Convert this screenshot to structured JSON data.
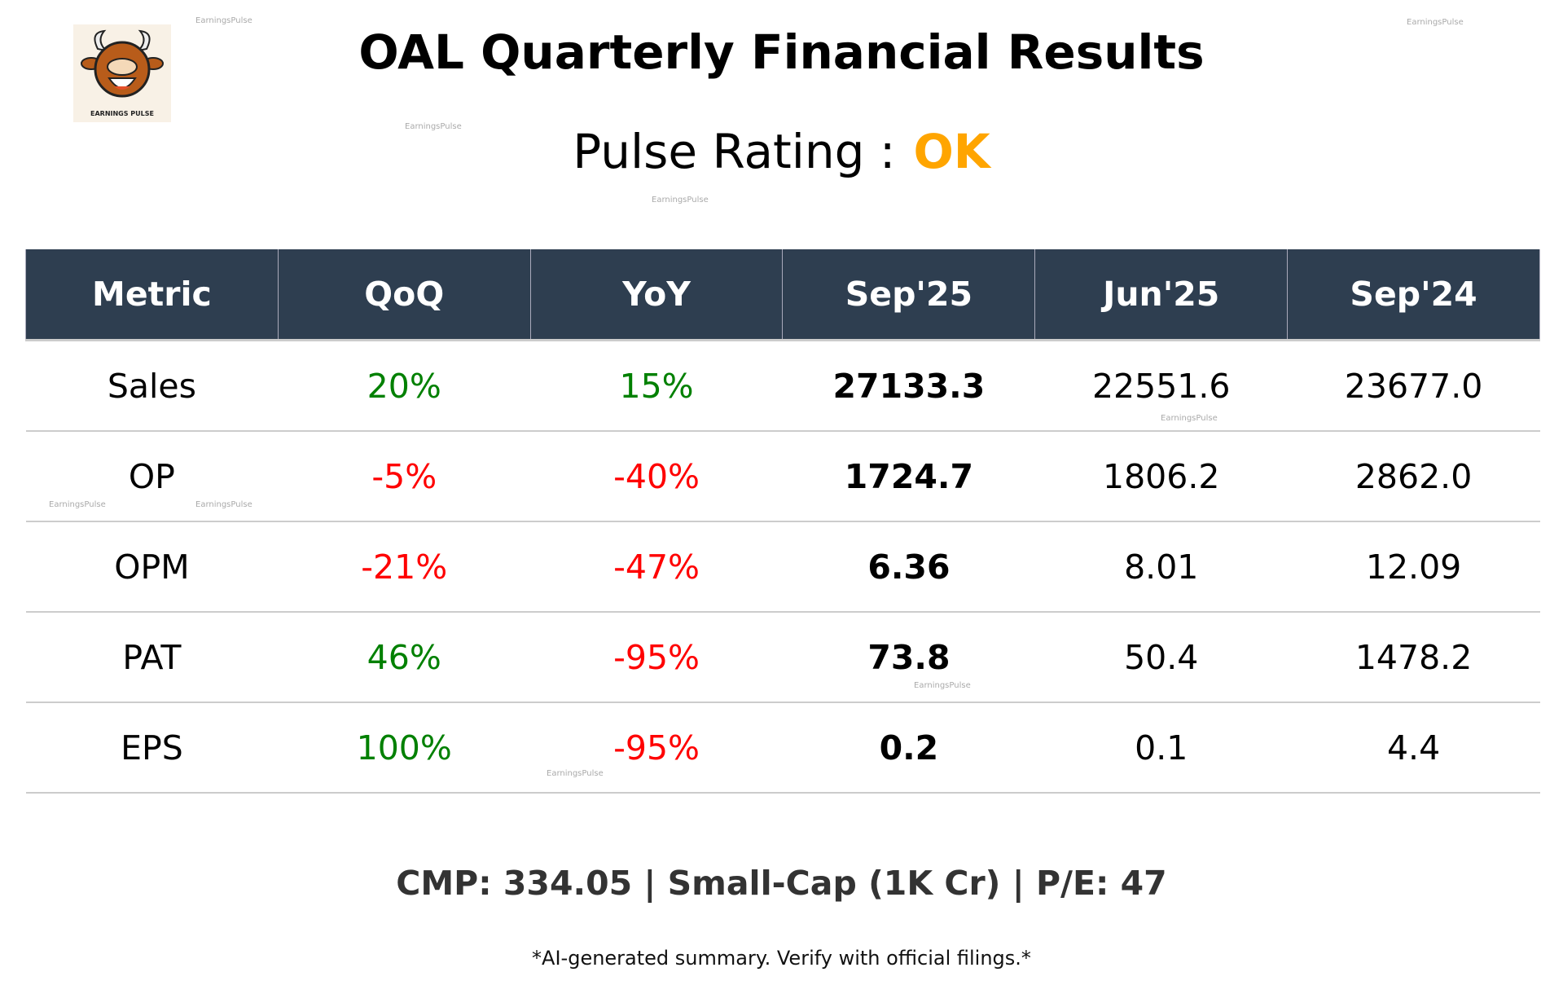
{
  "logo": {
    "text": "EARNINGS PULSE"
  },
  "title": "OAL Quarterly Financial Results",
  "pulse": {
    "label": "Pulse Rating :",
    "value": "OK",
    "color": "#FFA500"
  },
  "colors": {
    "header_bg": "#2E3E50",
    "positive": "#008000",
    "negative": "#FF0000"
  },
  "table": {
    "headers": [
      "Metric",
      "QoQ",
      "YoY",
      "Sep'25",
      "Jun'25",
      "Sep'24"
    ],
    "rows": [
      {
        "metric": "Sales",
        "qoq": "20%",
        "yoy": "15%",
        "sep25": "27133.3",
        "jun25": "22551.6",
        "sep24": "23677.0"
      },
      {
        "metric": "OP",
        "qoq": "-5%",
        "yoy": "-40%",
        "sep25": "1724.7",
        "jun25": "1806.2",
        "sep24": "2862.0"
      },
      {
        "metric": "OPM",
        "qoq": "-21%",
        "yoy": "-47%",
        "sep25": "6.36",
        "jun25": "8.01",
        "sep24": "12.09"
      },
      {
        "metric": "PAT",
        "qoq": "46%",
        "yoy": "-95%",
        "sep25": "73.8",
        "jun25": "50.4",
        "sep24": "1478.2"
      },
      {
        "metric": "EPS",
        "qoq": "100%",
        "yoy": "-95%",
        "sep25": "0.2",
        "jun25": "0.1",
        "sep24": "4.4"
      }
    ]
  },
  "footer": "CMP: 334.05 | Small-Cap (1K Cr) | P/E: 47",
  "disclaimer": "*AI-generated summary. Verify with official filings.*",
  "watermark": "EarningsPulse"
}
